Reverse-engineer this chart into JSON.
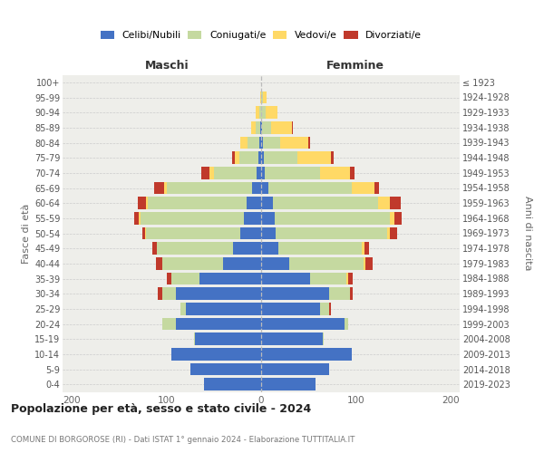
{
  "age_groups_bottom_to_top": [
    "0-4",
    "5-9",
    "10-14",
    "15-19",
    "20-24",
    "25-29",
    "30-34",
    "35-39",
    "40-44",
    "45-49",
    "50-54",
    "55-59",
    "60-64",
    "65-69",
    "70-74",
    "75-79",
    "80-84",
    "85-89",
    "90-94",
    "95-99",
    "100+"
  ],
  "birth_years_bottom_to_top": [
    "2019-2023",
    "2014-2018",
    "2009-2013",
    "2004-2008",
    "1999-2003",
    "1994-1998",
    "1989-1993",
    "1984-1988",
    "1979-1983",
    "1974-1978",
    "1969-1973",
    "1964-1968",
    "1959-1963",
    "1954-1958",
    "1949-1953",
    "1944-1948",
    "1939-1943",
    "1934-1938",
    "1929-1933",
    "1924-1928",
    "≤ 1923"
  ],
  "maschi": {
    "celibi": [
      60,
      75,
      95,
      70,
      90,
      80,
      90,
      65,
      40,
      30,
      22,
      18,
      15,
      10,
      5,
      3,
      2,
      1,
      0,
      0,
      0
    ],
    "coniugati": [
      0,
      0,
      0,
      1,
      15,
      5,
      15,
      30,
      65,
      80,
      100,
      110,
      105,
      90,
      45,
      20,
      12,
      5,
      2,
      0,
      0
    ],
    "vedovi": [
      0,
      0,
      0,
      0,
      0,
      0,
      0,
      0,
      0,
      0,
      1,
      1,
      2,
      3,
      5,
      5,
      8,
      5,
      4,
      1,
      0
    ],
    "divorziati": [
      0,
      0,
      0,
      0,
      0,
      0,
      4,
      5,
      6,
      5,
      3,
      5,
      8,
      10,
      8,
      3,
      0,
      0,
      0,
      0,
      0
    ]
  },
  "femmine": {
    "nubili": [
      58,
      72,
      96,
      65,
      88,
      62,
      72,
      52,
      30,
      18,
      15,
      14,
      12,
      8,
      4,
      3,
      2,
      1,
      0,
      0,
      0
    ],
    "coniugate": [
      0,
      0,
      0,
      1,
      4,
      10,
      22,
      38,
      78,
      88,
      118,
      122,
      112,
      88,
      58,
      35,
      18,
      10,
      5,
      2,
      0
    ],
    "vedove": [
      0,
      0,
      0,
      0,
      0,
      0,
      0,
      2,
      2,
      3,
      3,
      5,
      12,
      24,
      32,
      36,
      30,
      22,
      12,
      4,
      0
    ],
    "divorziate": [
      0,
      0,
      0,
      0,
      0,
      2,
      3,
      5,
      8,
      5,
      8,
      8,
      12,
      5,
      5,
      3,
      2,
      1,
      0,
      0,
      0
    ]
  },
  "colors": {
    "celibi_nubili": "#4472C4",
    "coniugati": "#C5D9A0",
    "vedovi": "#FFD966",
    "divorziati": "#C0392B"
  },
  "title": "Popolazione per età, sesso e stato civile - 2024",
  "subtitle": "COMUNE DI BORGOROSE (RI) - Dati ISTAT 1° gennaio 2024 - Elaborazione TUTTITALIA.IT",
  "maschi_label": "Maschi",
  "femmine_label": "Femmine",
  "ylabel_left": "Fasce di età",
  "ylabel_right": "Anni di nascita",
  "xlim": 210,
  "background_color": "#eeeeea",
  "bar_height": 0.82
}
